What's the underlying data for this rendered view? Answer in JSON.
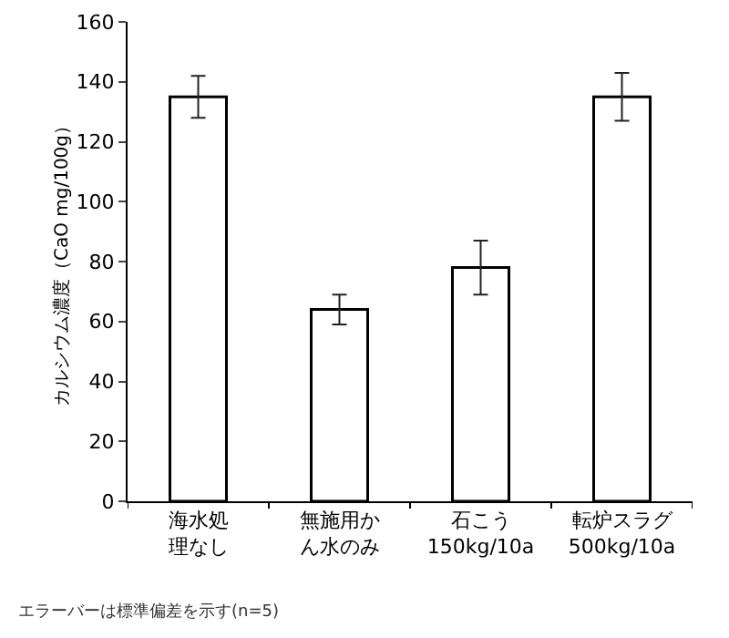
{
  "chart_data": {
    "type": "bar",
    "ylabel": "カルシウム濃度（CaO mg/100g）",
    "categories": [
      "海水処理なし",
      "無施用かん水のみ",
      "石こう\n150kg/10a",
      "転炉スラグ\n500kg/10a"
    ],
    "values": [
      135,
      64,
      78,
      135
    ],
    "errors": [
      7,
      5,
      9,
      8
    ],
    "color": "#ffffff",
    "ylim": [
      0,
      160
    ],
    "yticks": [
      0,
      20,
      40,
      60,
      80,
      100,
      120,
      140,
      160
    ],
    "grid": false,
    "annotations": [
      "エラーバーは標準偏差を示す(n=5)"
    ]
  }
}
